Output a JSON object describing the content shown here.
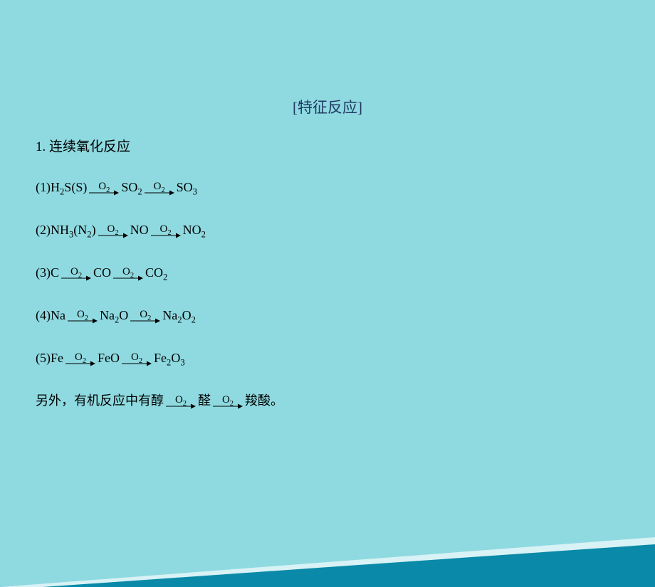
{
  "header": {
    "title": "[特征反应]"
  },
  "section": {
    "title": "1. 连续氧化反应"
  },
  "equations": [
    {
      "prefix": "(1)",
      "steps": [
        "H_2S(S)",
        "SO_2",
        "SO_3"
      ],
      "above": [
        "O_2",
        "O_2"
      ]
    },
    {
      "prefix": "(2)",
      "steps": [
        "NH_3(N_2)",
        "NO",
        "NO_2"
      ],
      "above": [
        "O_2",
        "O_2"
      ]
    },
    {
      "prefix": "(3)",
      "steps": [
        "C",
        "CO",
        "CO_2"
      ],
      "above": [
        "O_2",
        "O_2"
      ]
    },
    {
      "prefix": "(4)",
      "steps": [
        "Na",
        "Na_2O",
        "Na_2O_2"
      ],
      "above": [
        "O_2",
        "O_2"
      ]
    },
    {
      "prefix": "(5)",
      "steps": [
        "Fe",
        "FeO",
        "Fe_2O_3"
      ],
      "above": [
        "O_2",
        "O_2"
      ]
    }
  ],
  "note": {
    "lead": "另外，有机反应中有醇",
    "steps_after": [
      "醛",
      "羧酸"
    ],
    "above": [
      "O_2",
      "O_2"
    ],
    "tail": "。"
  },
  "arrow": {
    "width": 44,
    "height": 10,
    "stroke": "#000000",
    "stroke_width": 1
  },
  "triangle": {
    "fill_dark": "#0a8aa8",
    "fill_light": "#d8f2f5"
  }
}
